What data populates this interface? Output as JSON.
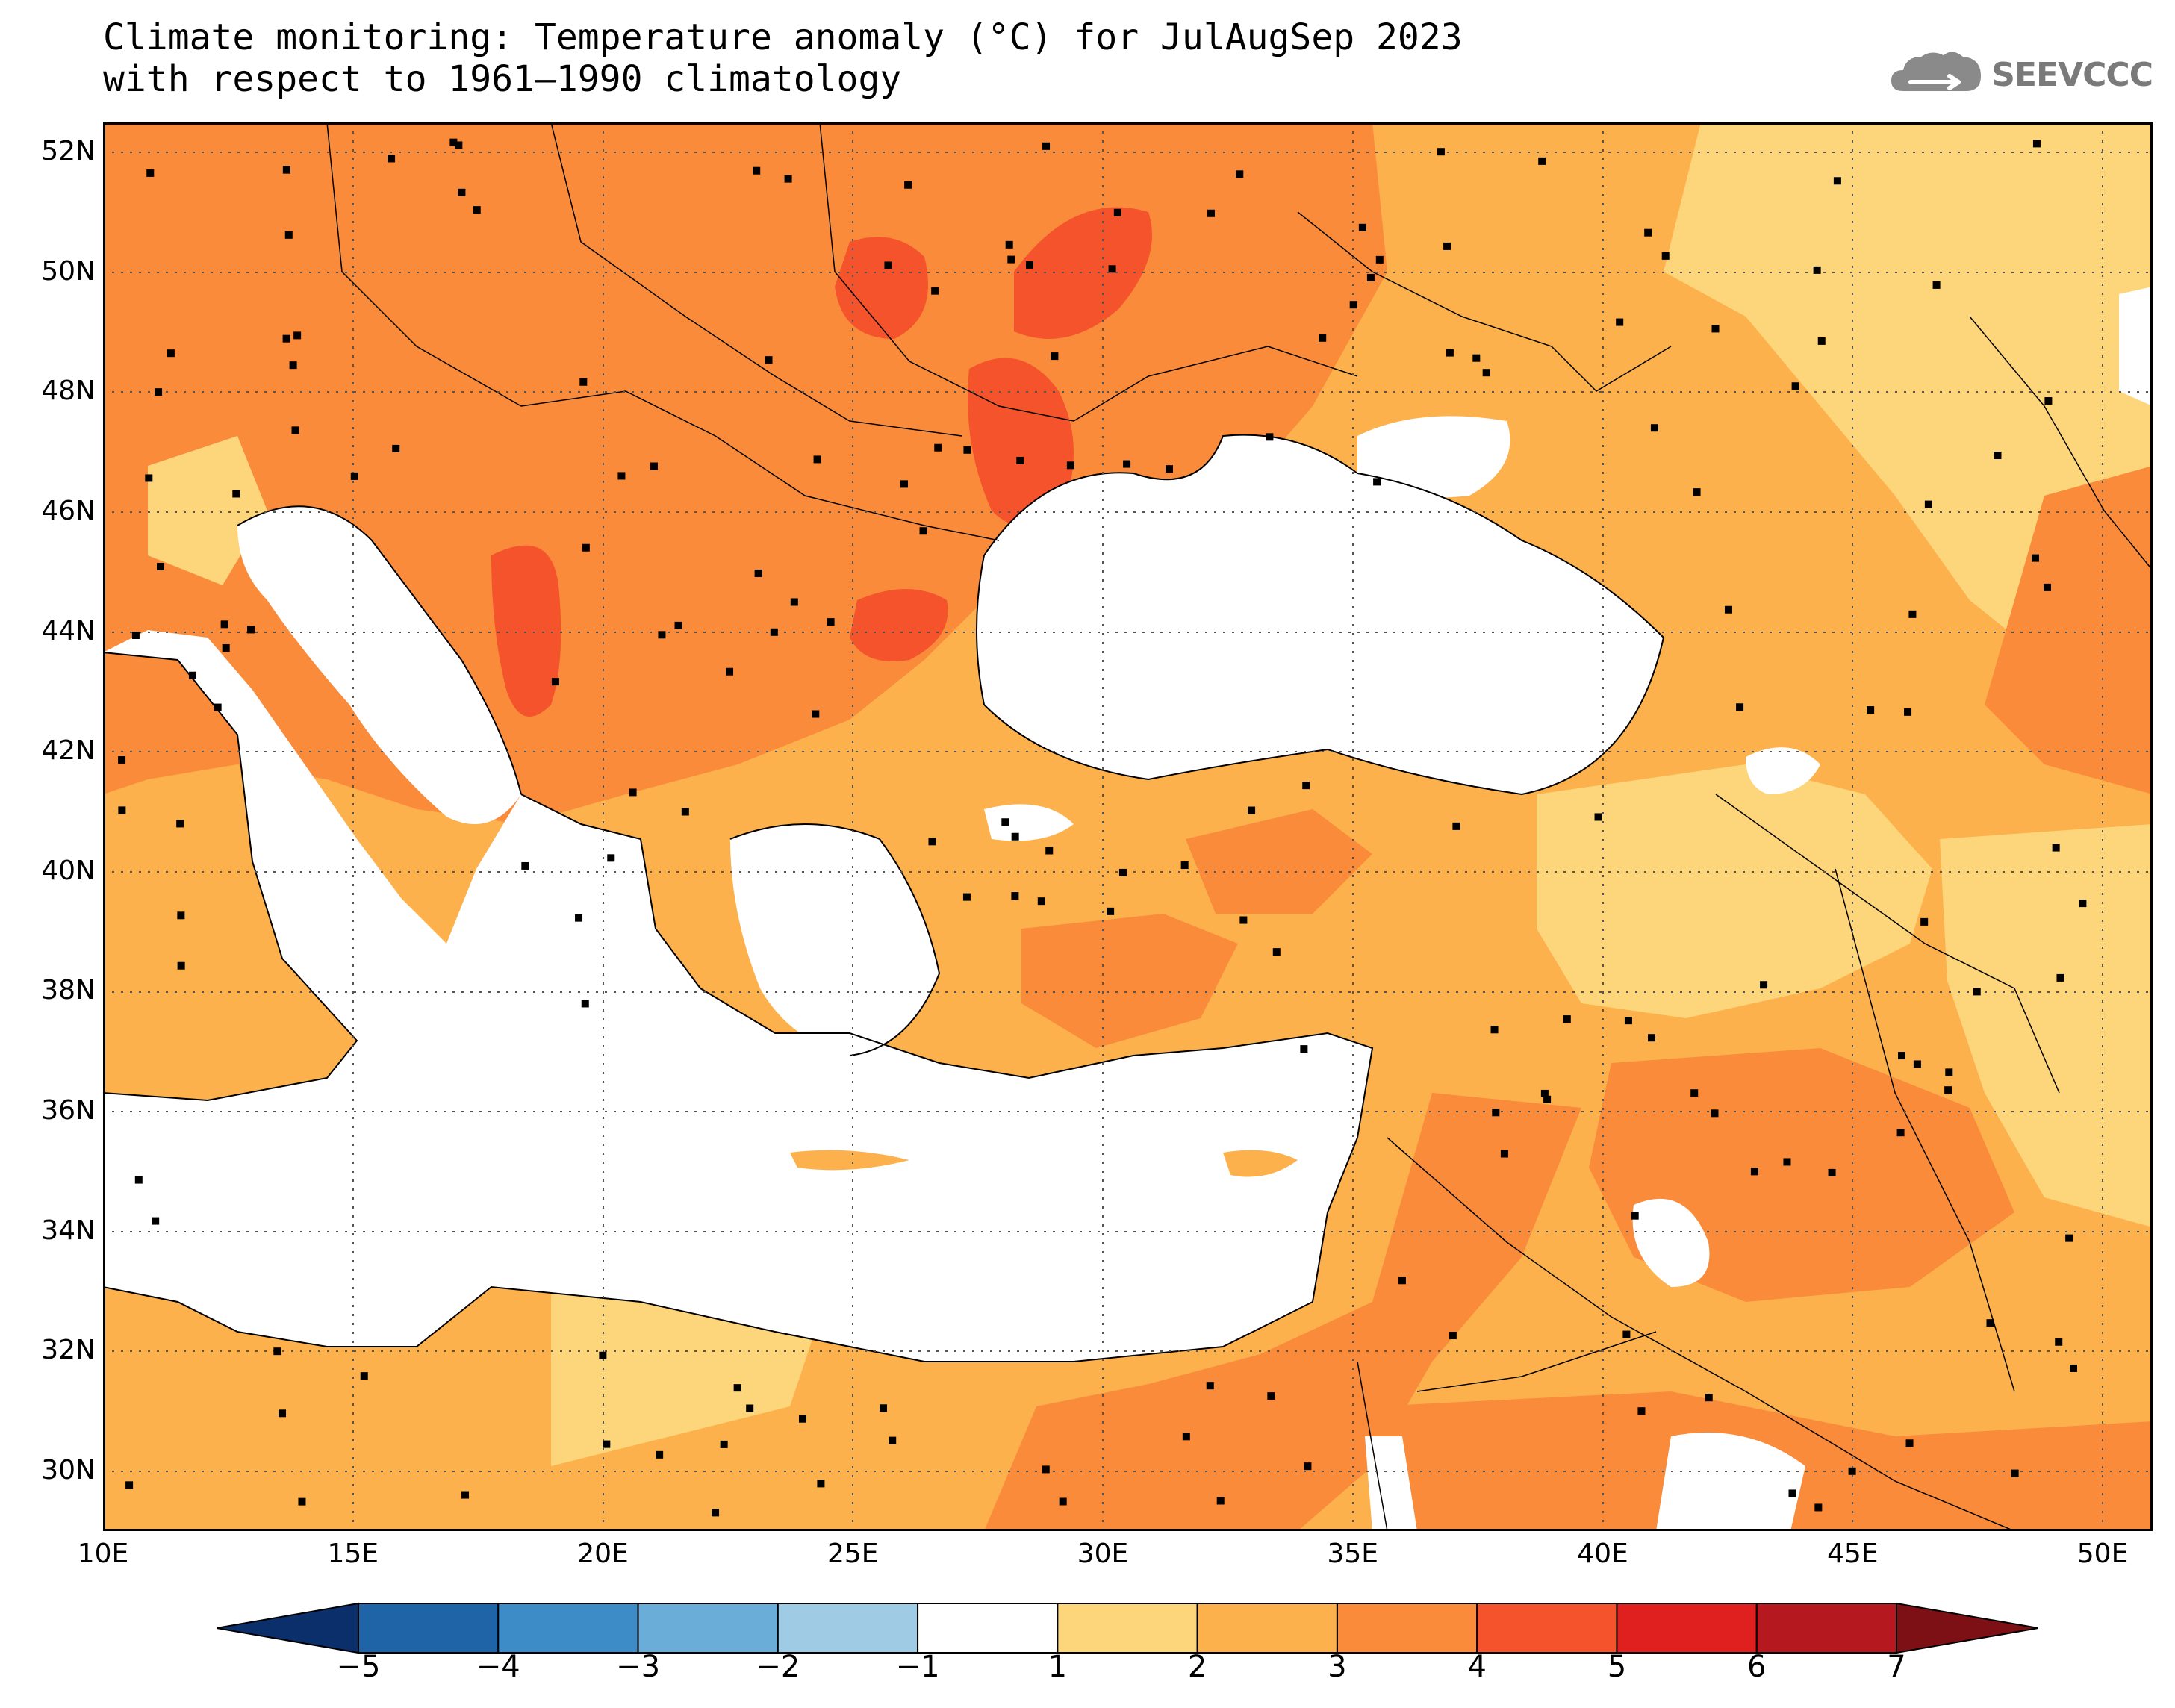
{
  "title": {
    "line1": "Climate monitoring: Temperature anomaly (°C) for JulAugSep 2023",
    "line2": "with respect to 1961–1990 climatology"
  },
  "logo": {
    "text": "SEEVCCC",
    "icon": "cloud-icon"
  },
  "map": {
    "lat_range": [
      29,
      52.5
    ],
    "lon_range": [
      10,
      51
    ],
    "lat_ticks": [
      "52N",
      "50N",
      "48N",
      "46N",
      "44N",
      "42N",
      "40N",
      "38N",
      "36N",
      "34N",
      "32N",
      "30N"
    ],
    "lon_ticks": [
      "10E",
      "15E",
      "20E",
      "25E",
      "30E",
      "35E",
      "40E",
      "45E",
      "50E"
    ],
    "gridlines": true
  },
  "colorbar": {
    "labels": [
      "−5",
      "−4",
      "−3",
      "−2",
      "−1",
      "1",
      "2",
      "3",
      "4",
      "5",
      "6",
      "7"
    ],
    "colors": [
      "#0b2f6b",
      "#1f64a6",
      "#3d8cc8",
      "#6aadd8",
      "#9fcbe5",
      "#ffffff",
      "#fdd57a",
      "#fcb14d",
      "#f98b3a",
      "#f4532b",
      "#e01f1f",
      "#b5191f",
      "#7d1014"
    ]
  }
}
